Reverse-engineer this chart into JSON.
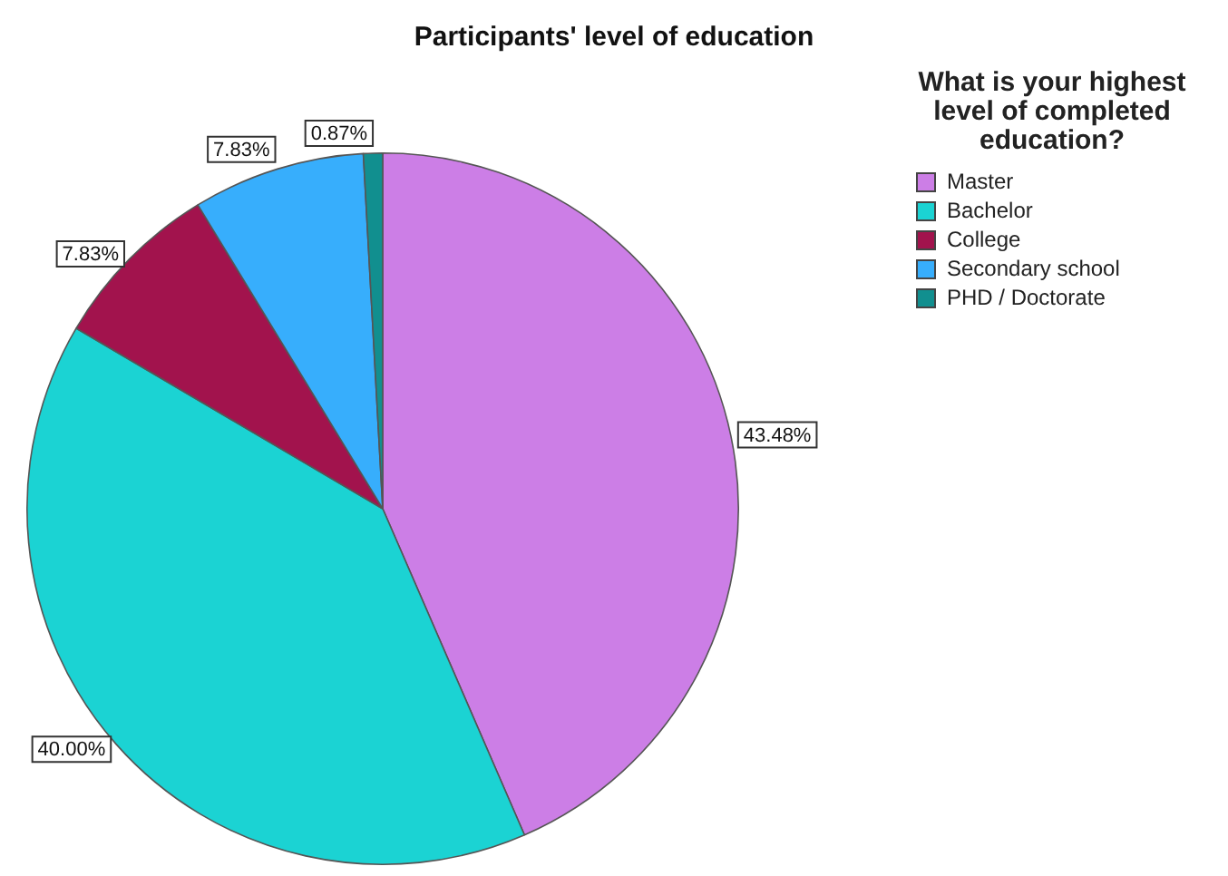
{
  "chart_data": {
    "type": "pie",
    "title": "Participants' level of education",
    "legend_title": "What is your highest level of completed education?",
    "legend": "top right",
    "categories": [
      "Master",
      "Bachelor",
      "College",
      "Secondary school",
      "PHD / Doctorate"
    ],
    "values": [
      43.48,
      40.0,
      7.83,
      7.83,
      0.87
    ],
    "value_labels": [
      "43.48%",
      "40.00%",
      "7.83%",
      "7.83%",
      "0.87%"
    ],
    "colors": [
      "#cc7ee6",
      "#1bd3d3",
      "#a2134d",
      "#37aefc",
      "#118f8f"
    ]
  }
}
